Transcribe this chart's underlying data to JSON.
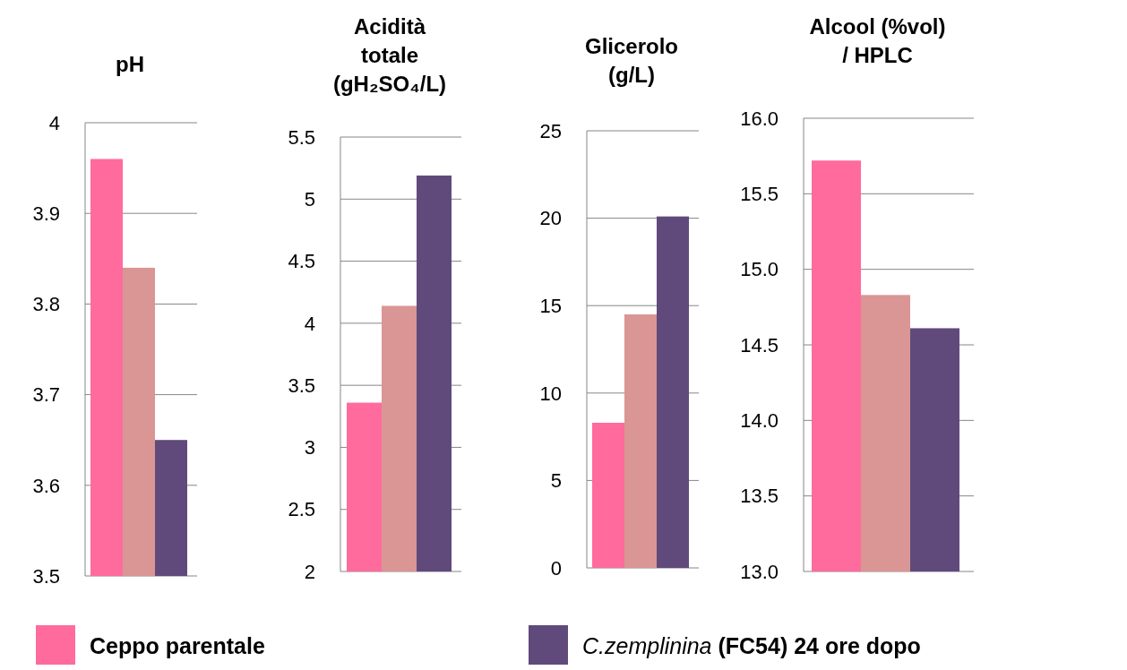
{
  "chart_data": [
    {
      "type": "bar",
      "title": "pH",
      "categories": [
        null
      ],
      "series": [
        {
          "name": "Ceppo parentale",
          "color": "#ff6b9d",
          "values": [
            3.96
          ]
        },
        {
          "color": "#d99694",
          "values": [
            3.84
          ]
        },
        {
          "name": "C.zemplinina (FC54) 24 ore dopo",
          "color": "#604a7b",
          "values": [
            3.65
          ]
        }
      ],
      "ylim": [
        3.5,
        4
      ],
      "yticks": [
        3.5,
        3.6,
        3.7,
        3.8,
        3.9,
        4
      ],
      "grid": "y",
      "legend": "bottom"
    },
    {
      "type": "bar",
      "title": "Acidità\ntotale\n(gH₂SO₄/L)",
      "categories": [
        null
      ],
      "series": [
        {
          "color": "#ff6b9d",
          "values": [
            3.36
          ]
        },
        {
          "color": "#d99694",
          "values": [
            4.14
          ]
        },
        {
          "color": "#604a7b",
          "values": [
            5.19
          ]
        }
      ],
      "ylim": [
        2,
        5.5
      ],
      "yticks": [
        2,
        2.5,
        3,
        3.5,
        4,
        4.5,
        5,
        5.5
      ],
      "grid": "y"
    },
    {
      "type": "bar",
      "title": "Glicerolo\n(g/L)",
      "categories": [
        null
      ],
      "series": [
        {
          "color": "#ff6b9d",
          "values": [
            8.3
          ]
        },
        {
          "color": "#d99694",
          "values": [
            14.5
          ]
        },
        {
          "color": "#604a7b",
          "values": [
            20.1
          ]
        }
      ],
      "ylim": [
        0,
        25
      ],
      "yticks": [
        0,
        5,
        10,
        15,
        20,
        25
      ],
      "grid": "y"
    },
    {
      "type": "bar",
      "title": "Alcool (%vol)\n/ HPLC",
      "categories": [
        null
      ],
      "series": [
        {
          "color": "#ff6b9d",
          "values": [
            15.72
          ]
        },
        {
          "color": "#d99694",
          "values": [
            14.83
          ]
        },
        {
          "color": "#604a7b",
          "values": [
            14.61
          ]
        }
      ],
      "ylim": [
        13,
        16
      ],
      "yticks": [
        {
          "value": 13,
          "label": "13.0"
        },
        {
          "value": 13.5,
          "label": "13.5"
        },
        {
          "value": 14,
          "label": "14.0"
        },
        {
          "value": 14.5,
          "label": "14.5"
        },
        {
          "value": 15,
          "label": "15.0"
        },
        {
          "value": 15.5,
          "label": "15.5"
        },
        {
          "value": 16,
          "label": "16.0"
        }
      ],
      "grid": "y"
    }
  ]
}
